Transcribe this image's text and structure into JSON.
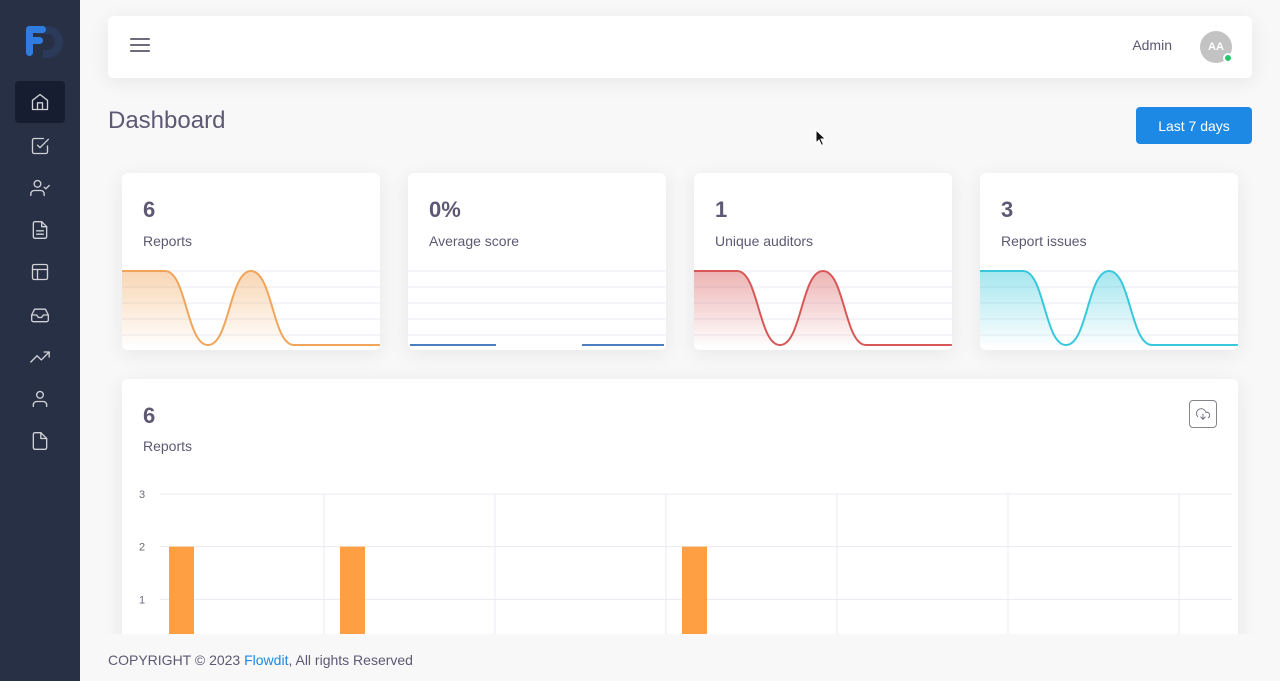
{
  "brand": {
    "logo_icon": "flowdit-logo",
    "accent": "#1e88e5"
  },
  "sidebar": {
    "items": [
      {
        "icon": "home-icon",
        "active": true
      },
      {
        "icon": "check-square-icon",
        "active": false
      },
      {
        "icon": "user-check-icon",
        "active": false
      },
      {
        "icon": "file-text-icon",
        "active": false
      },
      {
        "icon": "layout-icon",
        "active": false
      },
      {
        "icon": "inbox-icon",
        "active": false
      },
      {
        "icon": "trending-up-icon",
        "active": false
      },
      {
        "icon": "user-icon",
        "active": false
      },
      {
        "icon": "file-icon",
        "active": false
      }
    ]
  },
  "header": {
    "user_name": "Admin",
    "avatar_initials": "AA",
    "status": "online"
  },
  "page": {
    "title": "Dashboard",
    "range_button": "Last 7 days"
  },
  "stats": [
    {
      "value": "6",
      "label": "Reports",
      "color": "#f0a55a",
      "curve": [
        2,
        2,
        0,
        2,
        0,
        0,
        0
      ]
    },
    {
      "value": "0%",
      "label": "Average score",
      "color": "#4a7fc1",
      "curve": [
        0,
        0,
        0,
        0,
        0,
        0,
        0
      ]
    },
    {
      "value": "1",
      "label": "Unique auditors",
      "color": "#d85858",
      "curve": [
        1,
        1,
        0,
        1,
        0,
        0,
        0
      ]
    },
    {
      "value": "3",
      "label": "Report issues",
      "color": "#38c8dc",
      "curve": [
        1,
        1,
        0,
        1,
        0,
        0,
        0
      ]
    }
  ],
  "main_chart": {
    "value": "6",
    "label": "Reports",
    "download_icon": "cloud-download-icon"
  },
  "chart_data": {
    "type": "bar",
    "categories": [
      "",
      "",
      "",
      "",
      "",
      "",
      ""
    ],
    "values": [
      2,
      2,
      0,
      2,
      0,
      0,
      0
    ],
    "ylim": [
      0,
      3
    ],
    "yticks": [
      "3",
      "2",
      "1"
    ],
    "grid": true,
    "bar_color": "#ff9f43"
  },
  "footer": {
    "prefix": "COPYRIGHT © 2023 ",
    "link": "Flowdit",
    "suffix": ", All rights Reserved"
  }
}
